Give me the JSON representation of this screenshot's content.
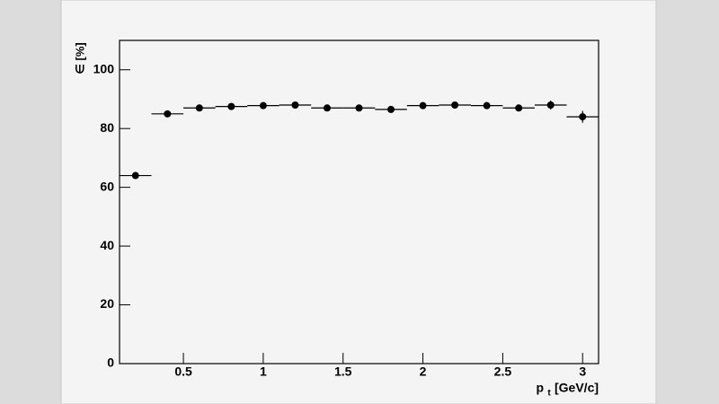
{
  "chart_data": {
    "type": "scatter",
    "x": [
      0.2,
      0.4,
      0.6,
      0.8,
      1.0,
      1.2,
      1.4,
      1.6,
      1.8,
      2.0,
      2.2,
      2.4,
      2.6,
      2.8,
      3.0
    ],
    "values": [
      64,
      85,
      87,
      87.5,
      87.8,
      88,
      87,
      87,
      86.5,
      87.8,
      88,
      87.8,
      87,
      88,
      84
    ],
    "xerr": [
      0.1,
      0.1,
      0.1,
      0.1,
      0.1,
      0.1,
      0.1,
      0.1,
      0.1,
      0.1,
      0.1,
      0.1,
      0.1,
      0.1,
      0.1
    ],
    "yerr": [
      0.5,
      0.5,
      0.5,
      0.5,
      0.5,
      0.5,
      0.5,
      0.5,
      0.5,
      0.5,
      0.5,
      0.5,
      0.5,
      1.5,
      2
    ],
    "color": "#000000",
    "xlim": [
      0.1,
      3.1
    ],
    "xticks": [
      0.5,
      1,
      1.5,
      2,
      2.5,
      3
    ],
    "ylim": [
      0,
      110
    ],
    "yticks": [
      0,
      20,
      40,
      60,
      80,
      100
    ],
    "xlabel": "p",
    "xlabel_subscript": "t",
    "xlabel_unit": "[GeV/c]",
    "ylabel": "∈ [%]"
  }
}
